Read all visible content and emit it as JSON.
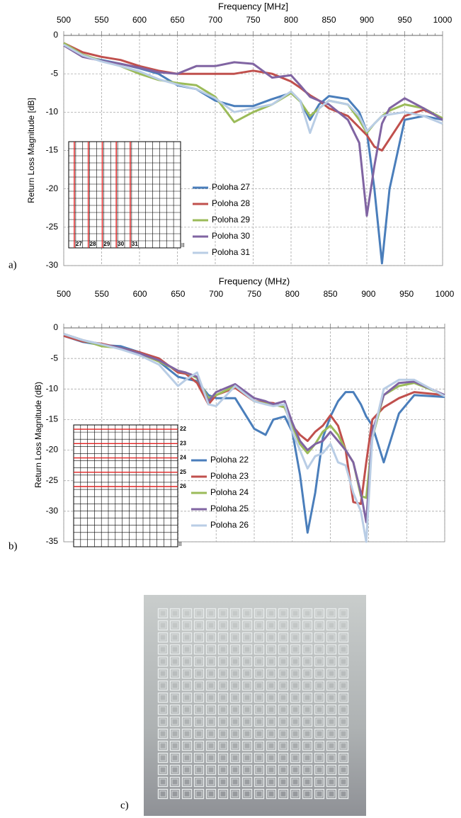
{
  "chart_data": [
    {
      "type": "line",
      "panel_label": "a)",
      "title": "Frequency [MHz]",
      "y_label": "Return Loss Magnitude [dB]",
      "x": [
        500,
        525,
        550,
        575,
        600,
        625,
        650,
        675,
        700,
        725,
        750,
        775,
        800,
        812,
        825,
        837,
        850,
        875,
        890,
        900,
        910,
        920,
        930,
        950,
        975,
        1000
      ],
      "xlim": [
        500,
        1000
      ],
      "xticks": [
        500,
        550,
        600,
        650,
        700,
        750,
        800,
        850,
        900,
        950,
        1000
      ],
      "ylim": [
        -30,
        0
      ],
      "yticks": [
        0,
        -5,
        -10,
        -15,
        -20,
        -25,
        -30
      ],
      "grid": true,
      "series": [
        {
          "name": "Poloha 27",
          "color": "#4a7ebb",
          "values": [
            -1,
            -2.7,
            -3.2,
            -3.7,
            -4.3,
            -5,
            -6.5,
            -7,
            -8.5,
            -9.2,
            -9.2,
            -8.3,
            -7.5,
            -8.5,
            -11,
            -9,
            -7.9,
            -8.3,
            -10,
            -12.5,
            -20,
            -29.7,
            -20,
            -11,
            -10.5,
            -11
          ]
        },
        {
          "name": "Poloha 28",
          "color": "#c0504d",
          "values": [
            -1,
            -2.2,
            -2.8,
            -3.2,
            -4,
            -4.6,
            -5,
            -5,
            -5,
            -5,
            -4.6,
            -5,
            -6,
            -6.8,
            -7.8,
            -8.5,
            -9.5,
            -10.5,
            -12,
            -13,
            -14.5,
            -15,
            -13.5,
            -10.5,
            -9.7,
            -10.8
          ]
        },
        {
          "name": "Poloha 29",
          "color": "#9bbb59",
          "values": [
            -1,
            -2.5,
            -3.3,
            -4,
            -5,
            -5.8,
            -6.2,
            -6.5,
            -8,
            -11.3,
            -10,
            -9,
            -7.5,
            -8.6,
            -10.5,
            -9.5,
            -8.5,
            -9,
            -11,
            -12.7,
            -11.5,
            -10.5,
            -9.8,
            -9,
            -9.5,
            -10.8
          ]
        },
        {
          "name": "Poloha 30",
          "color": "#8064a2",
          "values": [
            -1.3,
            -2.8,
            -3.3,
            -3.7,
            -4.2,
            -4.8,
            -5,
            -4,
            -4,
            -3.5,
            -3.7,
            -5.5,
            -5.2,
            -6.5,
            -8,
            -8.5,
            -9,
            -11,
            -14,
            -23.5,
            -17,
            -11.5,
            -9.5,
            -8.2,
            -9.5,
            -11
          ]
        },
        {
          "name": "Poloha 31",
          "color": "#b9cde5",
          "values": [
            -1.2,
            -2.6,
            -3.4,
            -4,
            -4.7,
            -5.7,
            -6.4,
            -7,
            -8.2,
            -10,
            -9.5,
            -9,
            -7.3,
            -8.5,
            -12.7,
            -9.5,
            -8.5,
            -9,
            -10.5,
            -12.5,
            -11.5,
            -10.5,
            -10.3,
            -10,
            -10.5,
            -11.5
          ]
        }
      ],
      "inset": {
        "labels": [
          "27",
          "28",
          "29",
          "30",
          "31"
        ],
        "corner_mark": "II"
      }
    },
    {
      "type": "line",
      "panel_label": "b)",
      "title": "Frequency (MHz)",
      "y_label": "Return Loss Magnitude (dB)",
      "x": [
        500,
        525,
        550,
        575,
        600,
        625,
        650,
        660,
        675,
        690,
        700,
        725,
        750,
        765,
        775,
        790,
        800,
        810,
        820,
        830,
        840,
        850,
        860,
        870,
        880,
        890,
        897,
        905,
        920,
        940,
        960,
        1000
      ],
      "xlim": [
        500,
        1000
      ],
      "xticks": [
        500,
        550,
        600,
        650,
        700,
        750,
        800,
        850,
        900,
        950,
        1000
      ],
      "ylim": [
        -35,
        0
      ],
      "yticks": [
        0,
        -5,
        -10,
        -15,
        -20,
        -25,
        -30,
        -35
      ],
      "grid": true,
      "series": [
        {
          "name": "Poloha 22",
          "color": "#4a7ebb",
          "values": [
            -1.3,
            -2.3,
            -2.8,
            -3,
            -4,
            -5.5,
            -8,
            -8.3,
            -8.7,
            -11,
            -11.5,
            -11.5,
            -16.5,
            -17.5,
            -15,
            -14.5,
            -17,
            -24,
            -33.5,
            -27,
            -18,
            -14.5,
            -12,
            -10.5,
            -10.5,
            -12.5,
            -14.5,
            -16,
            -22,
            -14,
            -11,
            -11.3
          ]
        },
        {
          "name": "Poloha 23",
          "color": "#c0504d",
          "values": [
            -1.3,
            -2.2,
            -2.6,
            -3.3,
            -4,
            -5,
            -7.3,
            -7.5,
            -9,
            -12.5,
            -11,
            -9.8,
            -12,
            -12.2,
            -12.3,
            -13,
            -16,
            -17.5,
            -18.5,
            -17,
            -16,
            -14.3,
            -16,
            -20,
            -28.5,
            -28.8,
            -22,
            -15,
            -13,
            -11.5,
            -10.5,
            -11
          ]
        },
        {
          "name": "Poloha 24",
          "color": "#9bbb59",
          "values": [
            -1,
            -2,
            -3,
            -3.3,
            -4.2,
            -5.5,
            -7,
            -7.3,
            -8.2,
            -11.5,
            -11,
            -9.5,
            -12,
            -12.4,
            -12.5,
            -13,
            -16,
            -19,
            -20.5,
            -19,
            -17,
            -16,
            -17.5,
            -20,
            -22,
            -27.5,
            -27.8,
            -18,
            -11,
            -9.5,
            -9,
            -11
          ]
        },
        {
          "name": "Poloha 25",
          "color": "#8064a2",
          "values": [
            -1,
            -2,
            -2.7,
            -3.3,
            -4.2,
            -5.3,
            -7,
            -7.3,
            -8,
            -12,
            -10.5,
            -9.2,
            -11.5,
            -12,
            -12.5,
            -12,
            -15.5,
            -18.5,
            -20,
            -19,
            -18.5,
            -17,
            -18.5,
            -20,
            -22,
            -27,
            -31.8,
            -17,
            -11,
            -9,
            -8.8,
            -11
          ]
        },
        {
          "name": "Poloha 26",
          "color": "#b9cde5",
          "values": [
            -1,
            -2,
            -2.7,
            -3.5,
            -4.5,
            -6,
            -9.5,
            -8.5,
            -7.3,
            -12.5,
            -12.8,
            -9.5,
            -12,
            -12.5,
            -12.8,
            -12.5,
            -17,
            -20,
            -23,
            -21,
            -20.5,
            -19,
            -22,
            -22.5,
            -27,
            -30,
            -35,
            -18,
            -10,
            -8.5,
            -8.5,
            -11.2
          ]
        }
      ],
      "inset": {
        "labels": [
          "22",
          "23",
          "24",
          "25",
          "26"
        ],
        "corner_mark": "II"
      }
    }
  ],
  "photo": {
    "panel_label": "c)"
  }
}
